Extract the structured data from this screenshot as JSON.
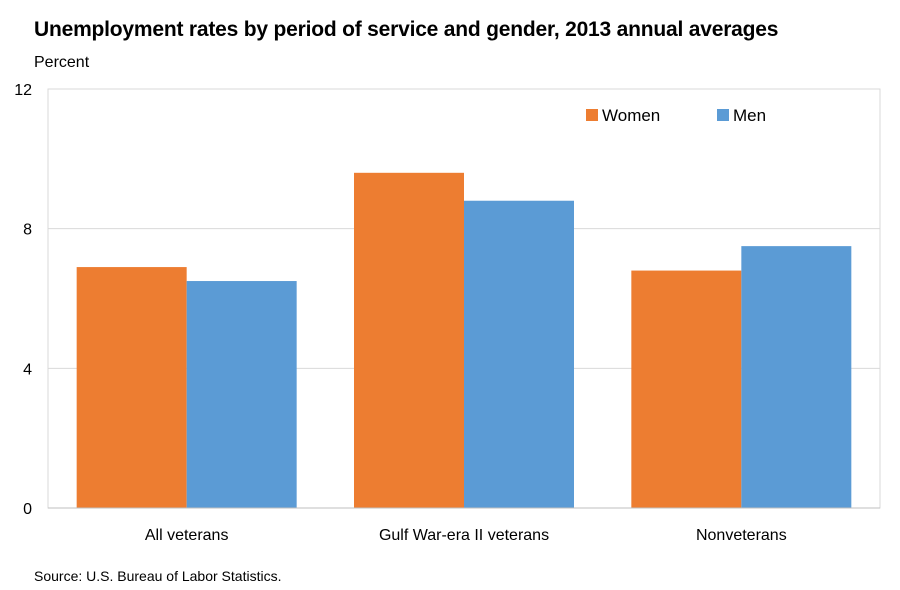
{
  "chart_data": {
    "type": "bar",
    "title": "Unemployment rates by period of service and gender, 2013 annual averages",
    "ylabel": "Percent",
    "xlabel": "",
    "categories": [
      "All veterans",
      "Gulf War-era II veterans",
      "Nonveterans"
    ],
    "series": [
      {
        "name": "Women",
        "color": "#ed7d31",
        "values": [
          6.9,
          9.6,
          6.8
        ]
      },
      {
        "name": "Men",
        "color": "#5b9bd5",
        "values": [
          6.5,
          8.8,
          7.5
        ]
      }
    ],
    "ylim": [
      0,
      12
    ],
    "yticks": [
      0,
      4,
      8,
      12
    ],
    "grid": true,
    "legend_position": "top-right",
    "source": "Source: U.S. Bureau of Labor Statistics."
  }
}
